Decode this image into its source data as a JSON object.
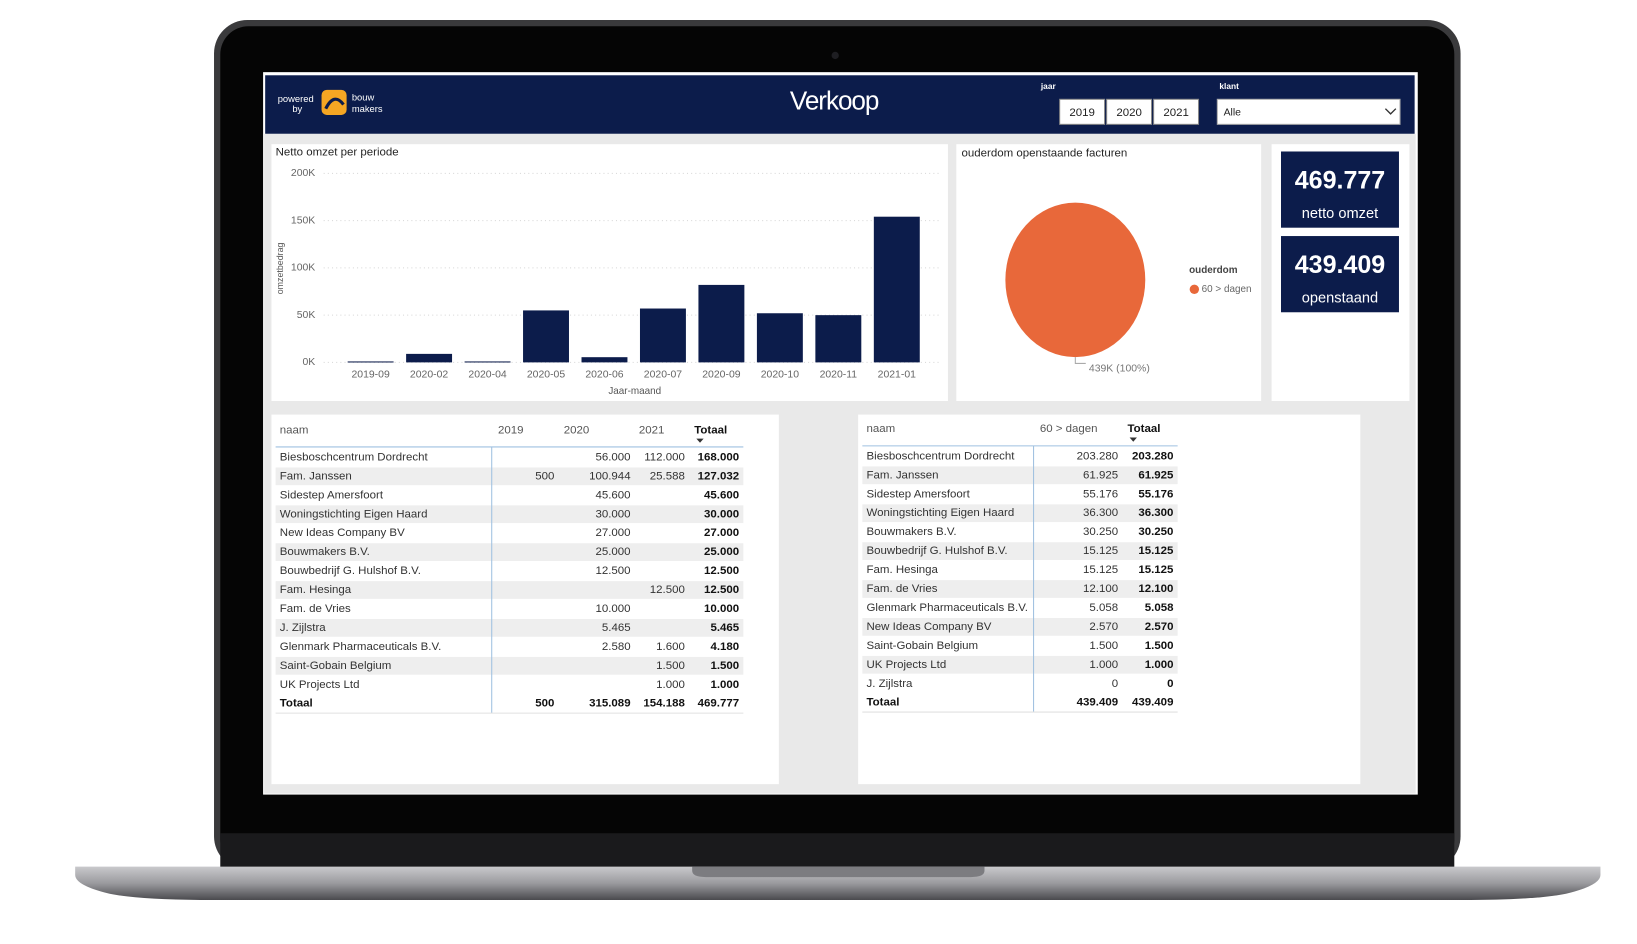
{
  "header": {
    "powered_by": [
      "powered",
      "by"
    ],
    "brand": [
      "bouw",
      "makers"
    ],
    "title": "Verkoop",
    "year_filter": {
      "label": "jaar",
      "options": [
        "2019",
        "2020",
        "2021"
      ]
    },
    "client_filter": {
      "label": "klant",
      "value": "Alle"
    }
  },
  "chart_data": [
    {
      "type": "bar",
      "title": "Netto omzet per periode",
      "x_label": "Jaar-maand",
      "y_label": "omzetbedrag",
      "categories": [
        "2019-09",
        "2020-02",
        "2020-04",
        "2020-05",
        "2020-06",
        "2020-07",
        "2020-09",
        "2020-10",
        "2020-11",
        "2021-01"
      ],
      "values": [
        1000,
        9000,
        1000,
        55000,
        5500,
        57000,
        82000,
        52000,
        50000,
        154188
      ],
      "color": "#0c1c4b",
      "ylim": [
        0,
        200000
      ],
      "yticks": [
        {
          "value": 0,
          "label": "0K"
        },
        {
          "value": 50000,
          "label": "50K"
        },
        {
          "value": 100000,
          "label": "100K"
        },
        {
          "value": 150000,
          "label": "150K"
        },
        {
          "value": 200000,
          "label": "200K"
        }
      ],
      "grid": true
    },
    {
      "type": "pie",
      "title": "ouderdom openstaande facturen",
      "legend_title": "ouderdom",
      "categories": [
        "60 > dagen"
      ],
      "values": [
        439409
      ],
      "value_labels": [
        "439K (100%)"
      ],
      "colors": [
        "#e8683a"
      ],
      "legend": "right"
    }
  ],
  "kpis": [
    {
      "value": "469.777",
      "label": "netto omzet"
    },
    {
      "value": "439.409",
      "label": "openstaand"
    }
  ],
  "tables": [
    {
      "columns": [
        "naam",
        "2019",
        "2020",
        "2021",
        "Totaal"
      ],
      "rows": [
        [
          "Biesboschcentrum Dordrecht",
          null,
          "56.000",
          "112.000",
          "168.000"
        ],
        [
          "Fam. Janssen",
          "500",
          "100.944",
          "25.588",
          "127.032"
        ],
        [
          "Sidestep Amersfoort",
          null,
          "45.600",
          null,
          "45.600"
        ],
        [
          "Woningstichting Eigen Haard",
          null,
          "30.000",
          null,
          "30.000"
        ],
        [
          "New Ideas Company BV",
          null,
          "27.000",
          null,
          "27.000"
        ],
        [
          "Bouwmakers B.V.",
          null,
          "25.000",
          null,
          "25.000"
        ],
        [
          "Bouwbedrijf G. Hulshof B.V.",
          null,
          "12.500",
          null,
          "12.500"
        ],
        [
          "Fam. Hesinga",
          null,
          null,
          "12.500",
          "12.500"
        ],
        [
          "Fam. de Vries",
          null,
          "10.000",
          null,
          "10.000"
        ],
        [
          "J. Zijlstra",
          null,
          "5.465",
          null,
          "5.465"
        ],
        [
          "Glenmark Pharmaceuticals B.V.",
          null,
          "2.580",
          "1.600",
          "4.180"
        ],
        [
          "Saint-Gobain Belgium",
          null,
          null,
          "1.500",
          "1.500"
        ],
        [
          "UK Projects Ltd",
          null,
          null,
          "1.000",
          "1.000"
        ],
        [
          "Totaal",
          "500",
          "315.089",
          "154.188",
          "469.777"
        ]
      ]
    },
    {
      "columns": [
        "naam",
        "60 > dagen",
        "Totaal"
      ],
      "rows": [
        [
          "Biesboschcentrum Dordrecht",
          "203.280",
          "203.280"
        ],
        [
          "Fam. Janssen",
          "61.925",
          "61.925"
        ],
        [
          "Sidestep Amersfoort",
          "55.176",
          "55.176"
        ],
        [
          "Woningstichting Eigen Haard",
          "36.300",
          "36.300"
        ],
        [
          "Bouwmakers B.V.",
          "30.250",
          "30.250"
        ],
        [
          "Bouwbedrijf G. Hulshof B.V.",
          "15.125",
          "15.125"
        ],
        [
          "Fam. Hesinga",
          "15.125",
          "15.125"
        ],
        [
          "Fam. de Vries",
          "12.100",
          "12.100"
        ],
        [
          "Glenmark Pharmaceuticals B.V.",
          "5.058",
          "5.058"
        ],
        [
          "New Ideas Company BV",
          "2.570",
          "2.570"
        ],
        [
          "Saint-Gobain Belgium",
          "1.500",
          "1.500"
        ],
        [
          "UK Projects Ltd",
          "1.000",
          "1.000"
        ],
        [
          "J. Zijlstra",
          "0",
          "0"
        ],
        [
          "Totaal",
          "439.409",
          "439.409"
        ]
      ]
    }
  ]
}
